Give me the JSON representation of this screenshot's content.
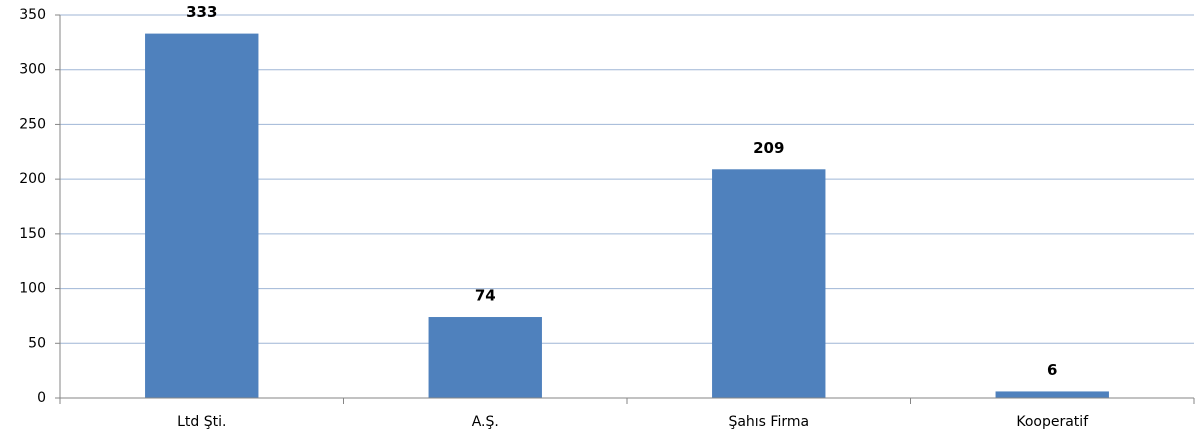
{
  "chart_data": {
    "type": "bar",
    "categories": [
      "Ltd Şti.",
      "A.Ş.",
      "Şahıs Firma",
      "Kooperatif"
    ],
    "values": [
      333,
      74,
      209,
      6
    ],
    "color": "#4f81bd",
    "ylim": [
      0,
      350
    ],
    "yticks": [
      0,
      50,
      100,
      150,
      200,
      250,
      300,
      350
    ],
    "grid": true
  }
}
